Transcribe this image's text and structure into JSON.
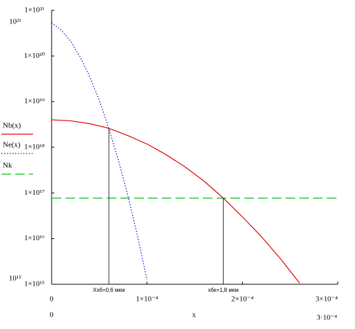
{
  "chart_data": {
    "type": "line",
    "log_y": true,
    "x_label": "x",
    "xlim": [
      0,
      0.0003
    ],
    "xticks": [
      0,
      {
        "value": 0.0001,
        "label": "1×10⁻⁴"
      },
      {
        "value": 0.0002,
        "label": "2×10⁻⁴"
      },
      {
        "value": 0.0003,
        "label": "3×10⁻⁴"
      }
    ],
    "xlim_labels": [
      "0",
      "3·10⁻⁴"
    ],
    "ylim": [
      1000000000000000.0,
      1e+21
    ],
    "yticks": [
      {
        "value": 1000000000000000.0,
        "label": "1×10¹⁵"
      },
      {
        "value": 1e+16,
        "label": "1×10¹⁶"
      },
      {
        "value": 1e+17,
        "label": "1×10¹⁷"
      },
      {
        "value": 1e+18,
        "label": "1×10¹⁸"
      },
      {
        "value": 1e+19,
        "label": "1×10¹⁹"
      },
      {
        "value": 1e+20,
        "label": "1×10²⁰"
      },
      {
        "value": 1e+21,
        "label": "1×10²¹"
      }
    ],
    "ylim_labels": [
      "10¹⁵",
      "10²¹"
    ],
    "series": [
      {
        "name": "Nb(x)",
        "color": "#e00000",
        "dash": "solid",
        "x": [
          0,
          2e-05,
          4e-05,
          6e-05,
          8e-05,
          0.0001,
          0.00012,
          0.00014,
          0.00016,
          0.00018,
          0.0002,
          0.00022,
          0.00024,
          0.00026
        ],
        "values": [
          4e+18,
          3.8e+18,
          3.3e+18,
          2.6e+18,
          1.8e+18,
          1.18e+18,
          6.9e+17,
          3.7e+17,
          1.8e+17,
          7.7e+16,
          3e+16,
          1.1e+16,
          3600000000000000.0,
          1060000000000000.0
        ]
      },
      {
        "name": "Ne(x)",
        "color": "#0000c0",
        "dash": "dotted",
        "x": [
          0,
          1e-05,
          2e-05,
          3e-05,
          4e-05,
          5e-05,
          6e-05,
          7e-05,
          8e-05,
          9e-05,
          0.0001
        ],
        "values": [
          5.4e+20,
          3.7e+20,
          2.1e+20,
          9.5e+19,
          3.5e+19,
          1.07e+19,
          2.6e+18,
          5.2e+17,
          8.7e+16,
          1.15e+16,
          1260000000000000.0
        ]
      },
      {
        "name": "Nk",
        "color": "#00c000",
        "dash": "dashed",
        "x": [
          0,
          0.0003
        ],
        "values": [
          7.7e+16,
          7.7e+16
        ]
      }
    ],
    "annotations": [
      {
        "text": "Хэб=0,6 мкм",
        "x": 6e-05,
        "y": 2.6e+18
      },
      {
        "text": "хбк=1,8 мкм",
        "x": 0.00018,
        "y": 7.7e+16
      }
    ]
  }
}
